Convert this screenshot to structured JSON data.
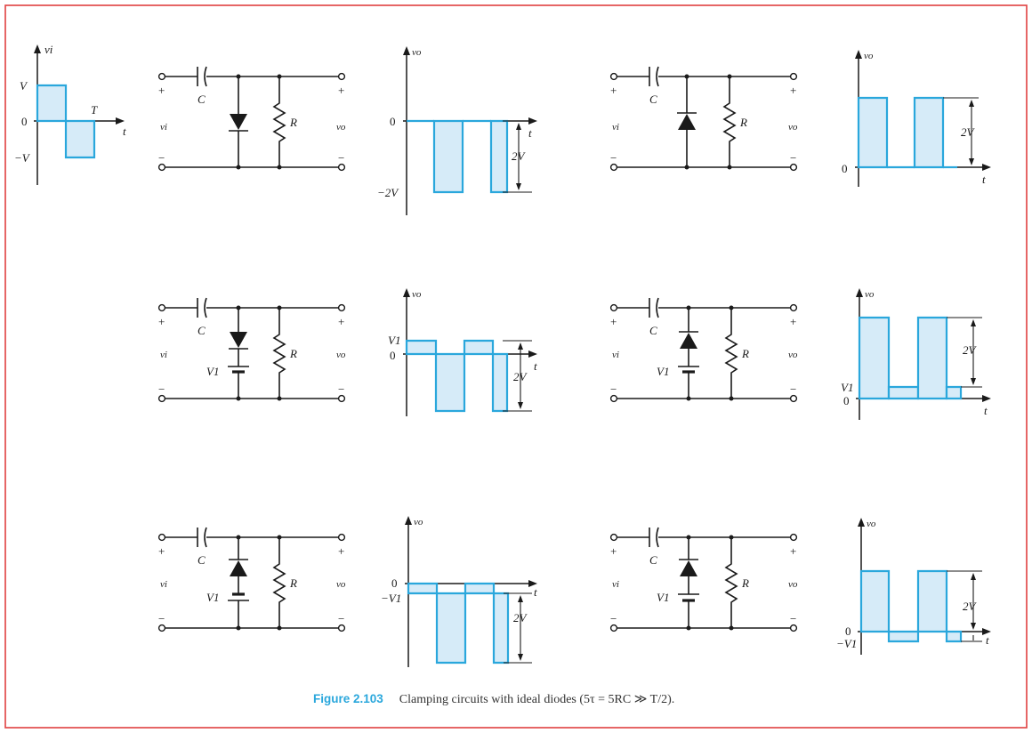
{
  "colors": {
    "frame": "#e04040",
    "wave_stroke": "#2aa7dc",
    "wave_fill": "#d6ebf8",
    "caption_accent": "#2aa7dc"
  },
  "input_plot": {
    "axis_label": "vi",
    "pos": "V",
    "zero": "0",
    "neg": "−V",
    "period": "T",
    "time": "t"
  },
  "circuit_labels": {
    "cap": "C",
    "res": "R",
    "vin": "vi",
    "vout": "vo",
    "plus": "+",
    "minus": "−",
    "battery": "V1"
  },
  "output_labels": {
    "axis": "vo",
    "time": "t",
    "zero": "0",
    "two_v": "2V",
    "neg_two_v": "−2V",
    "v1": "V1",
    "neg_v1": "−V1"
  },
  "caption": {
    "number": "Figure 2.103",
    "text": "Clamping circuits with ideal diodes (5τ = 5RC ≫ T/2)."
  }
}
